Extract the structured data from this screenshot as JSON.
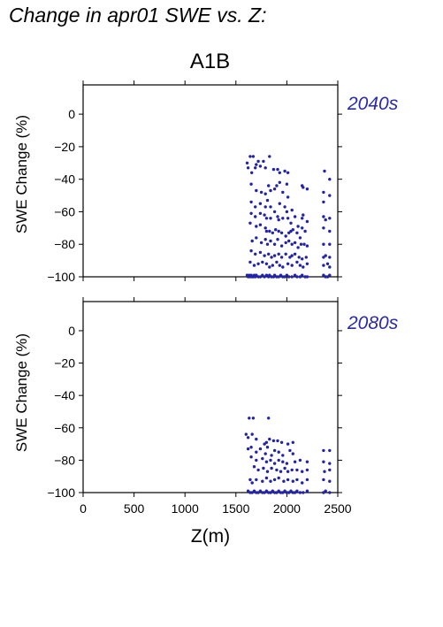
{
  "page_title": "Change in apr01 SWE vs. Z:",
  "scenario": "A1B",
  "colors": {
    "points": "#2222aa",
    "period_label": "#2a2aaa",
    "axes": "#000000"
  },
  "chart_data": [
    {
      "type": "scatter",
      "period_label": "2040s",
      "ylabel": "SWE Change (%)",
      "xlabel": "",
      "xlim": [
        0,
        2500
      ],
      "ylim": [
        -100,
        18
      ],
      "xticks": [
        0,
        500,
        1000,
        1500,
        2000,
        2500
      ],
      "yticks": [
        0,
        -20,
        -40,
        -60,
        -80,
        -100
      ],
      "xtick_labels_shown": false,
      "points": [
        [
          1610,
          -30
        ],
        [
          1620,
          -33
        ],
        [
          1640,
          -26
        ],
        [
          1655,
          -36
        ],
        [
          1670,
          -26
        ],
        [
          1690,
          -33
        ],
        [
          1700,
          -31
        ],
        [
          1720,
          -29
        ],
        [
          1740,
          -32
        ],
        [
          1770,
          -29
        ],
        [
          1790,
          -33
        ],
        [
          1830,
          -26
        ],
        [
          1870,
          -34
        ],
        [
          1910,
          -34
        ],
        [
          1930,
          -36
        ],
        [
          1980,
          -35
        ],
        [
          2010,
          -36
        ],
        [
          2150,
          -44
        ],
        [
          2160,
          -45
        ],
        [
          2200,
          -46
        ],
        [
          2370,
          -35
        ],
        [
          2420,
          -40
        ],
        [
          1650,
          -43
        ],
        [
          1700,
          -47
        ],
        [
          1750,
          -48
        ],
        [
          1790,
          -49
        ],
        [
          1820,
          -44
        ],
        [
          1840,
          -47
        ],
        [
          1880,
          -46
        ],
        [
          1900,
          -44
        ],
        [
          1930,
          -42
        ],
        [
          1960,
          -48
        ],
        [
          2000,
          -43
        ],
        [
          2010,
          -51
        ],
        [
          2360,
          -48
        ],
        [
          2420,
          -50
        ],
        [
          1650,
          -54
        ],
        [
          1690,
          -57
        ],
        [
          1740,
          -55
        ],
        [
          1790,
          -57
        ],
        [
          1810,
          -53
        ],
        [
          1840,
          -57
        ],
        [
          1880,
          -60
        ],
        [
          1930,
          -55
        ],
        [
          1980,
          -57
        ],
        [
          2000,
          -60
        ],
        [
          2050,
          -59
        ],
        [
          2360,
          -54
        ],
        [
          1650,
          -61
        ],
        [
          1690,
          -63
        ],
        [
          1740,
          -61
        ],
        [
          1780,
          -62
        ],
        [
          1800,
          -64
        ],
        [
          1840,
          -64
        ],
        [
          1910,
          -63
        ],
        [
          1920,
          -65
        ],
        [
          1960,
          -64
        ],
        [
          2010,
          -64
        ],
        [
          2040,
          -67
        ],
        [
          2080,
          -63
        ],
        [
          2110,
          -69
        ],
        [
          2150,
          -64
        ],
        [
          2160,
          -62
        ],
        [
          2200,
          -66
        ],
        [
          2360,
          -63
        ],
        [
          2380,
          -65
        ],
        [
          2420,
          -64
        ],
        [
          1640,
          -67
        ],
        [
          1700,
          -69
        ],
        [
          1740,
          -68
        ],
        [
          1790,
          -70
        ],
        [
          1800,
          -72
        ],
        [
          1830,
          -72
        ],
        [
          1860,
          -73
        ],
        [
          1890,
          -71
        ],
        [
          1920,
          -72
        ],
        [
          1950,
          -73
        ],
        [
          1990,
          -75
        ],
        [
          2020,
          -73
        ],
        [
          2040,
          -72
        ],
        [
          2060,
          -71
        ],
        [
          2100,
          -73
        ],
        [
          2130,
          -76
        ],
        [
          2150,
          -70
        ],
        [
          2180,
          -72
        ],
        [
          2360,
          -70
        ],
        [
          2420,
          -72
        ],
        [
          1660,
          -78
        ],
        [
          1700,
          -76
        ],
        [
          1750,
          -79
        ],
        [
          1790,
          -77
        ],
        [
          1810,
          -80
        ],
        [
          1840,
          -78
        ],
        [
          1880,
          -80
        ],
        [
          1910,
          -77
        ],
        [
          1950,
          -81
        ],
        [
          1990,
          -79
        ],
        [
          2020,
          -78
        ],
        [
          2050,
          -80
        ],
        [
          2080,
          -79
        ],
        [
          2110,
          -82
        ],
        [
          2140,
          -80
        ],
        [
          2170,
          -80
        ],
        [
          2200,
          -81
        ],
        [
          2360,
          -80
        ],
        [
          2420,
          -80
        ],
        [
          1650,
          -84
        ],
        [
          1690,
          -86
        ],
        [
          1740,
          -85
        ],
        [
          1780,
          -87
        ],
        [
          1820,
          -86
        ],
        [
          1850,
          -88
        ],
        [
          1880,
          -87
        ],
        [
          1920,
          -86
        ],
        [
          1950,
          -88
        ],
        [
          1990,
          -86
        ],
        [
          2030,
          -88
        ],
        [
          2050,
          -87
        ],
        [
          2080,
          -86
        ],
        [
          2120,
          -88
        ],
        [
          2150,
          -89
        ],
        [
          2190,
          -88
        ],
        [
          2360,
          -88
        ],
        [
          2380,
          -87
        ],
        [
          2420,
          -88
        ],
        [
          1640,
          -91
        ],
        [
          1680,
          -93
        ],
        [
          1720,
          -92
        ],
        [
          1760,
          -91
        ],
        [
          1800,
          -92
        ],
        [
          1830,
          -94
        ],
        [
          1860,
          -93
        ],
        [
          1900,
          -91
        ],
        [
          1930,
          -93
        ],
        [
          1960,
          -94
        ],
        [
          2010,
          -92
        ],
        [
          2050,
          -93
        ],
        [
          2100,
          -91
        ],
        [
          2130,
          -93
        ],
        [
          2160,
          -94
        ],
        [
          2200,
          -92
        ],
        [
          2360,
          -93
        ],
        [
          2400,
          -92
        ],
        [
          2420,
          -94
        ],
        [
          1610,
          -99
        ],
        [
          1620,
          -100
        ],
        [
          1630,
          -99
        ],
        [
          1640,
          -100
        ],
        [
          1650,
          -99
        ],
        [
          1660,
          -100
        ],
        [
          1670,
          -100
        ],
        [
          1680,
          -99
        ],
        [
          1690,
          -100
        ],
        [
          1700,
          -99
        ],
        [
          1720,
          -100
        ],
        [
          1740,
          -100
        ],
        [
          1760,
          -99
        ],
        [
          1780,
          -100
        ],
        [
          1800,
          -99
        ],
        [
          1820,
          -100
        ],
        [
          1830,
          -99
        ],
        [
          1850,
          -100
        ],
        [
          1870,
          -100
        ],
        [
          1880,
          -99
        ],
        [
          1900,
          -100
        ],
        [
          1920,
          -100
        ],
        [
          1940,
          -99
        ],
        [
          1960,
          -100
        ],
        [
          1980,
          -100
        ],
        [
          2000,
          -99
        ],
        [
          2020,
          -100
        ],
        [
          2050,
          -100
        ],
        [
          2080,
          -99
        ],
        [
          2100,
          -100
        ],
        [
          2130,
          -100
        ],
        [
          2150,
          -99
        ],
        [
          2180,
          -100
        ],
        [
          2200,
          -100
        ],
        [
          2360,
          -99
        ],
        [
          2380,
          -100
        ],
        [
          2400,
          -100
        ],
        [
          2420,
          -99
        ]
      ]
    },
    {
      "type": "scatter",
      "period_label": "2080s",
      "ylabel": "SWE Change (%)",
      "xlabel": "Z(m)",
      "xlim": [
        0,
        2500
      ],
      "ylim": [
        -100,
        18
      ],
      "xticks": [
        0,
        500,
        1000,
        1500,
        2000,
        2500
      ],
      "yticks": [
        0,
        -20,
        -40,
        -60,
        -80,
        -100
      ],
      "xtick_labels_shown": true,
      "points": [
        [
          1630,
          -54
        ],
        [
          1670,
          -54
        ],
        [
          1820,
          -54
        ],
        [
          1600,
          -64
        ],
        [
          1620,
          -66
        ],
        [
          1660,
          -64
        ],
        [
          1700,
          -67
        ],
        [
          1780,
          -70
        ],
        [
          1800,
          -69
        ],
        [
          1830,
          -67
        ],
        [
          1870,
          -68
        ],
        [
          1910,
          -68
        ],
        [
          1950,
          -69
        ],
        [
          2010,
          -70
        ],
        [
          2060,
          -69
        ],
        [
          1620,
          -73
        ],
        [
          1650,
          -72
        ],
        [
          1700,
          -75
        ],
        [
          1740,
          -73
        ],
        [
          1790,
          -76
        ],
        [
          1810,
          -72
        ],
        [
          1850,
          -77
        ],
        [
          1880,
          -74
        ],
        [
          1920,
          -75
        ],
        [
          1960,
          -77
        ],
        [
          2030,
          -74
        ],
        [
          2060,
          -76
        ],
        [
          2360,
          -74
        ],
        [
          2420,
          -74
        ],
        [
          1650,
          -78
        ],
        [
          1700,
          -80
        ],
        [
          1760,
          -79
        ],
        [
          1800,
          -81
        ],
        [
          1840,
          -80
        ],
        [
          1880,
          -82
        ],
        [
          1920,
          -80
        ],
        [
          1960,
          -81
        ],
        [
          2000,
          -82
        ],
        [
          2080,
          -81
        ],
        [
          2130,
          -80
        ],
        [
          2200,
          -81
        ],
        [
          2360,
          -81
        ],
        [
          2420,
          -82
        ],
        [
          1680,
          -84
        ],
        [
          1720,
          -86
        ],
        [
          1770,
          -85
        ],
        [
          1810,
          -87
        ],
        [
          1850,
          -85
        ],
        [
          1900,
          -86
        ],
        [
          1940,
          -87
        ],
        [
          1980,
          -85
        ],
        [
          2010,
          -87
        ],
        [
          2050,
          -86
        ],
        [
          2100,
          -86
        ],
        [
          2150,
          -87
        ],
        [
          2200,
          -86
        ],
        [
          2370,
          -87
        ],
        [
          2420,
          -86
        ],
        [
          1640,
          -92
        ],
        [
          1660,
          -94
        ],
        [
          1700,
          -92
        ],
        [
          1760,
          -93
        ],
        [
          1800,
          -91
        ],
        [
          1840,
          -93
        ],
        [
          1880,
          -92
        ],
        [
          1920,
          -91
        ],
        [
          1970,
          -93
        ],
        [
          2010,
          -92
        ],
        [
          2060,
          -93
        ],
        [
          2100,
          -92
        ],
        [
          2150,
          -94
        ],
        [
          2200,
          -92
        ],
        [
          2360,
          -92
        ],
        [
          2420,
          -93
        ],
        [
          1620,
          -99
        ],
        [
          1640,
          -100
        ],
        [
          1660,
          -100
        ],
        [
          1680,
          -99
        ],
        [
          1700,
          -100
        ],
        [
          1720,
          -100
        ],
        [
          1740,
          -99
        ],
        [
          1760,
          -100
        ],
        [
          1780,
          -100
        ],
        [
          1800,
          -99
        ],
        [
          1820,
          -100
        ],
        [
          1840,
          -100
        ],
        [
          1860,
          -99
        ],
        [
          1880,
          -100
        ],
        [
          1900,
          -100
        ],
        [
          1920,
          -99
        ],
        [
          1940,
          -100
        ],
        [
          1960,
          -100
        ],
        [
          1980,
          -99
        ],
        [
          2000,
          -100
        ],
        [
          2020,
          -100
        ],
        [
          2040,
          -99
        ],
        [
          2060,
          -100
        ],
        [
          2080,
          -100
        ],
        [
          2100,
          -99
        ],
        [
          2130,
          -100
        ],
        [
          2160,
          -100
        ],
        [
          2200,
          -99
        ],
        [
          2360,
          -100
        ],
        [
          2380,
          -99
        ],
        [
          2420,
          -100
        ]
      ]
    }
  ]
}
